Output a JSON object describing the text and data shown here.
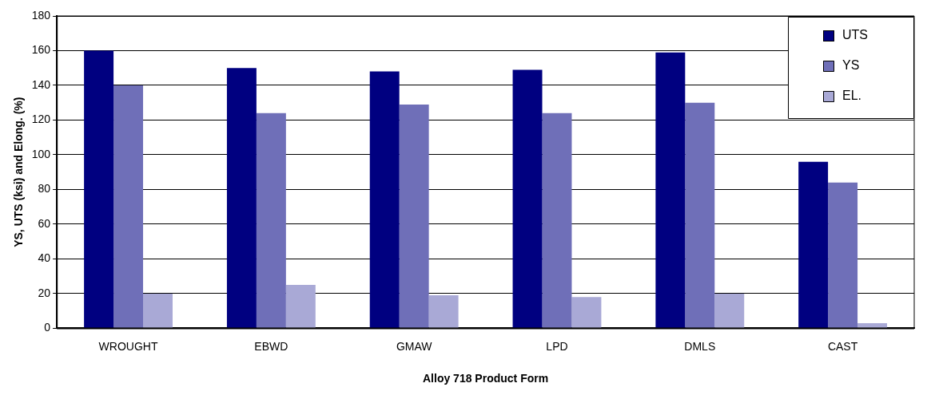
{
  "chart_data": {
    "type": "bar",
    "xlabel": "Alloy 718 Product Form",
    "ylabel": "YS, UTS (ksi) and Elong. (%)",
    "categories": [
      "WROUGHT",
      "EBWD",
      "GMAW",
      "LPD",
      "DMLS",
      "CAST"
    ],
    "series": [
      {
        "name": "UTS",
        "color": "#000080",
        "values": [
          160,
          150,
          148,
          149,
          159,
          96
        ]
      },
      {
        "name": "YS",
        "color": "#6f6fb8",
        "values": [
          140,
          124,
          129,
          124,
          130,
          84
        ]
      },
      {
        "name": "EL.",
        "color": "#a9a9d6",
        "values": [
          20,
          25,
          19,
          18,
          20,
          3
        ]
      }
    ],
    "ylim": [
      0,
      180
    ],
    "yticks": [
      0,
      20,
      40,
      60,
      80,
      100,
      120,
      140,
      160,
      180
    ],
    "grid": "y",
    "legend": "top right"
  }
}
